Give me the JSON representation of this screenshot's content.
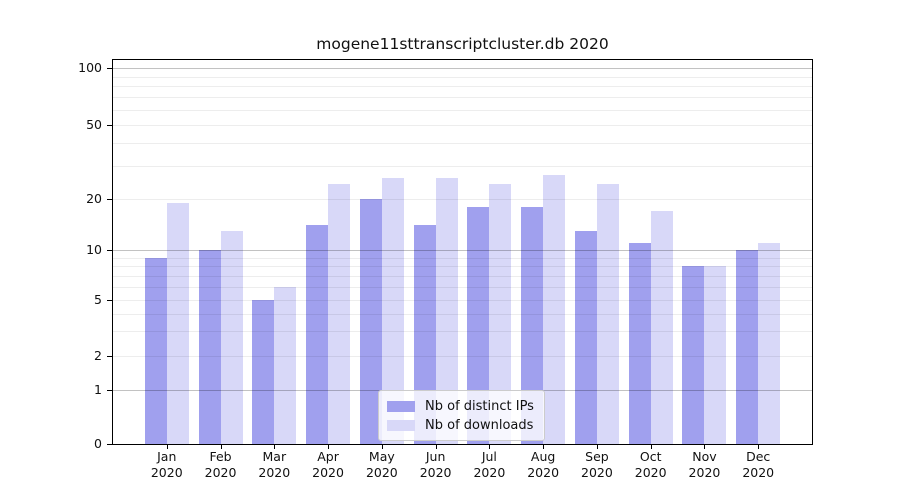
{
  "chart_data": {
    "type": "bar",
    "title": "mogene11sttranscriptcluster.db 2020",
    "categories": [
      "Jan",
      "Feb",
      "Mar",
      "Apr",
      "May",
      "Jun",
      "Jul",
      "Aug",
      "Sep",
      "Oct",
      "Nov",
      "Dec"
    ],
    "x_tick_second_line": "2020",
    "series": [
      {
        "name": "Nb of distinct IPs",
        "color": "#a0a0ee",
        "values": [
          9,
          10,
          5,
          14,
          20,
          14,
          18,
          18,
          13,
          11,
          8,
          10
        ]
      },
      {
        "name": "Nb of downloads",
        "color": "#d8d8f8",
        "values": [
          19,
          13,
          6,
          24,
          26,
          26,
          24,
          27,
          24,
          17,
          8,
          11
        ]
      }
    ],
    "y_ticks": [
      0,
      1,
      2,
      5,
      10,
      20,
      50,
      100
    ],
    "ylim": [
      0,
      110
    ],
    "yscale": "log-like (0,1,2,5,10,20,50,100)",
    "grid": "on",
    "legend_position": "lower center"
  }
}
